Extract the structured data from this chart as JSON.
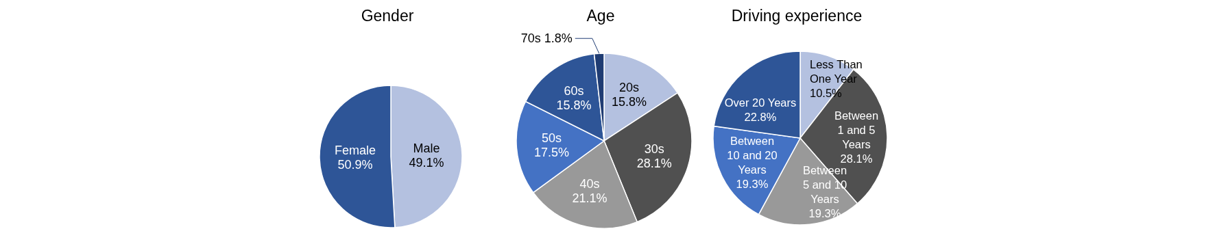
{
  "chart_data": [
    {
      "type": "pie",
      "title": "Gender",
      "categories": [
        "Male",
        "Female"
      ],
      "values": [
        49.1,
        50.9
      ],
      "value_labels": [
        "49.1%",
        "50.9%"
      ],
      "colors": [
        "#b4c1e0",
        "#2e5597"
      ],
      "legend": false
    },
    {
      "type": "pie",
      "title": "Age",
      "categories": [
        "20s",
        "30s",
        "40s",
        "50s",
        "60s",
        "70s"
      ],
      "values": [
        15.8,
        28.1,
        21.1,
        17.5,
        15.8,
        1.8
      ],
      "value_labels": [
        "15.8%",
        "28.1%",
        "21.1%",
        "17.5%",
        "15.8%",
        "1.8%"
      ],
      "colors": [
        "#b4c1e0",
        "#505050",
        "#999999",
        "#4472c4",
        "#2e5597",
        "#1f3c73"
      ],
      "legend": false
    },
    {
      "type": "pie",
      "title": "Driving experience",
      "categories": [
        "Less Than\nOne Year",
        "Between\n1 and 5\nYears",
        "Between\n5 and 10\nYears",
        "Between\n10 and 20\nYears",
        "Over 20 Years"
      ],
      "values": [
        10.5,
        28.1,
        19.3,
        19.3,
        22.8
      ],
      "value_labels": [
        "10.5%",
        "28.1%",
        "19.3%",
        "19.3%",
        "22.8%"
      ],
      "colors": [
        "#b4c1e0",
        "#505050",
        "#999999",
        "#4472c4",
        "#2e5597"
      ],
      "legend": false
    }
  ]
}
